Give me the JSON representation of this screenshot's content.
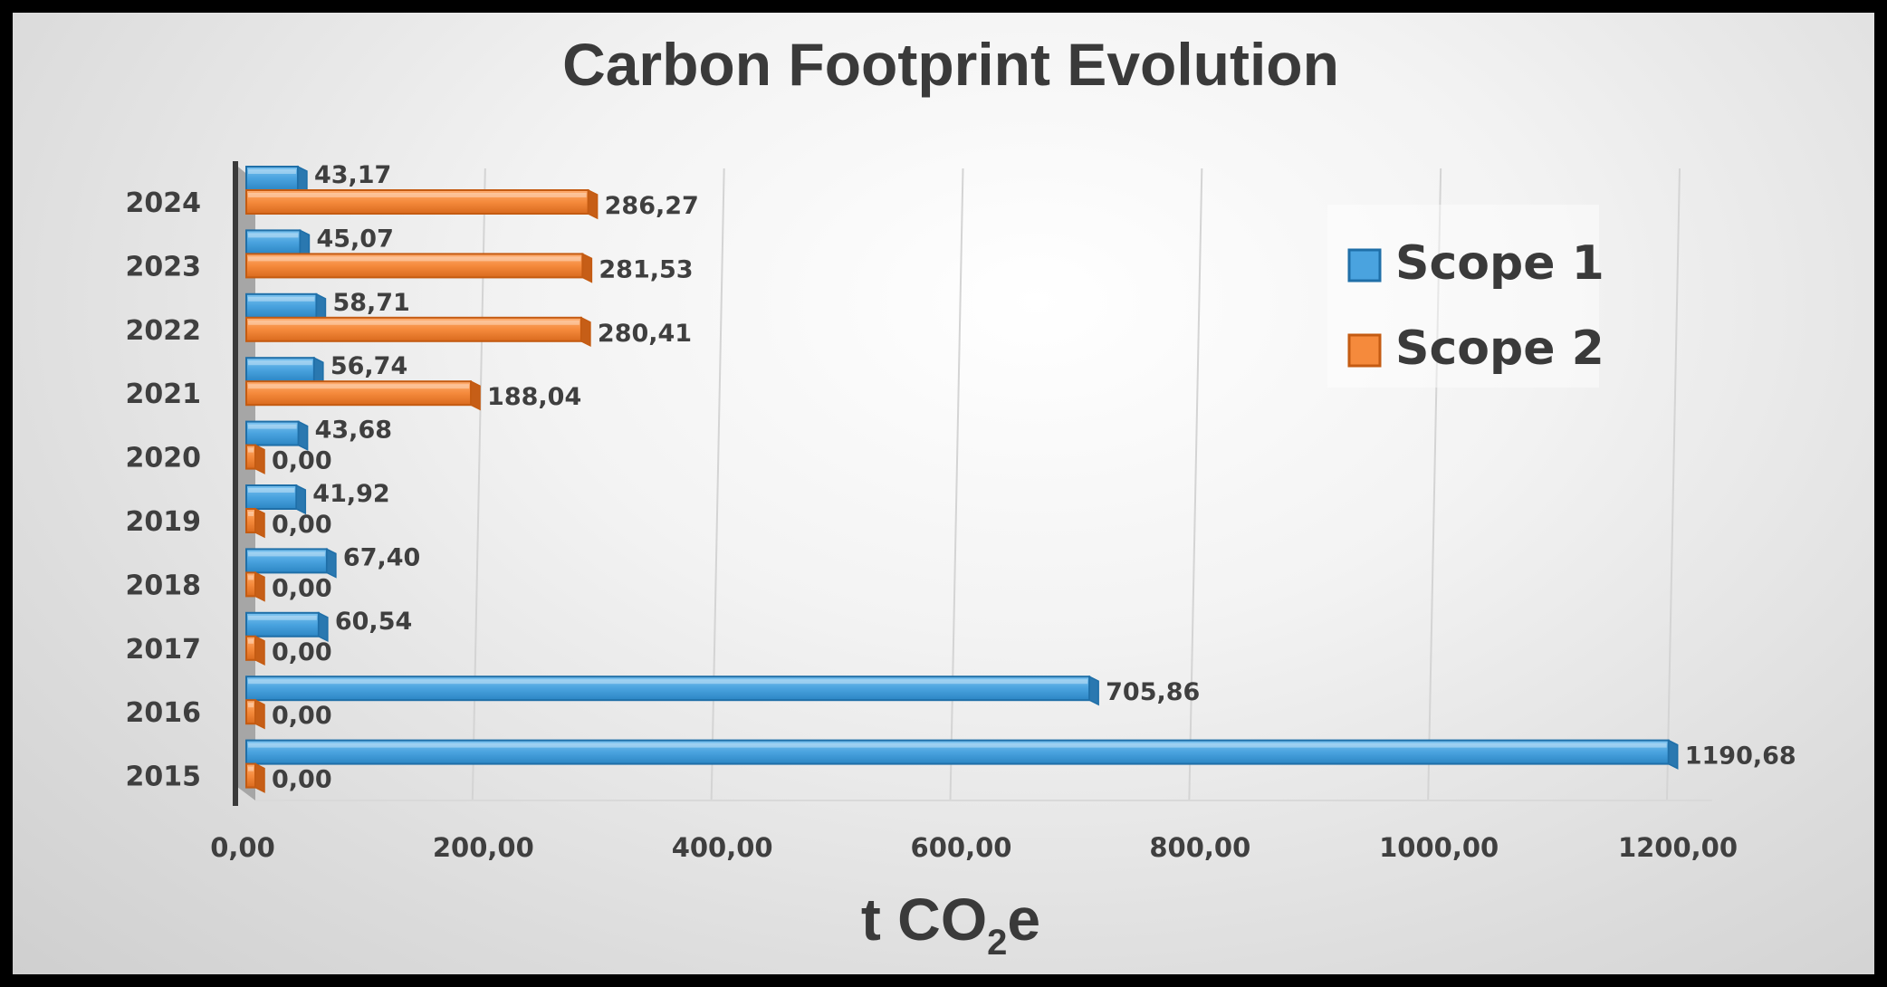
{
  "chart_data": {
    "type": "bar",
    "orientation": "horizontal",
    "title": "Carbon Footprint Evolution",
    "xlabel": "t CO2e",
    "xlabel_parts": {
      "main": "t CO",
      "sub": "2",
      "tail": "e"
    },
    "ylabel": "",
    "categories": [
      "2015",
      "2016",
      "2017",
      "2018",
      "2019",
      "2020",
      "2021",
      "2022",
      "2023",
      "2024"
    ],
    "series": [
      {
        "name": "Scope 1",
        "color": "#4aa3df",
        "values": [
          1190.68,
          705.86,
          60.54,
          67.4,
          41.92,
          43.68,
          56.74,
          58.71,
          45.07,
          43.17
        ],
        "labels": [
          "1190,68",
          "705,86",
          "60,54",
          "67,40",
          "41,92",
          "43,68",
          "56,74",
          "58,71",
          "45,07",
          "43,17"
        ]
      },
      {
        "name": "Scope 2",
        "color": "#f58a3c",
        "values": [
          0,
          0,
          0,
          0,
          0,
          0,
          188.04,
          280.41,
          281.53,
          286.27
        ],
        "labels": [
          "0,00",
          "0,00",
          "0,00",
          "0,00",
          "0,00",
          "0,00",
          "188,04",
          "280,41",
          "281,53",
          "286,27"
        ]
      }
    ],
    "xlim": [
      0,
      1200
    ],
    "xticks": [
      "0,00",
      "200,00",
      "400,00",
      "600,00",
      "800,00",
      "1000,00",
      "1200,00"
    ],
    "grid": true,
    "legend_position": "right"
  }
}
